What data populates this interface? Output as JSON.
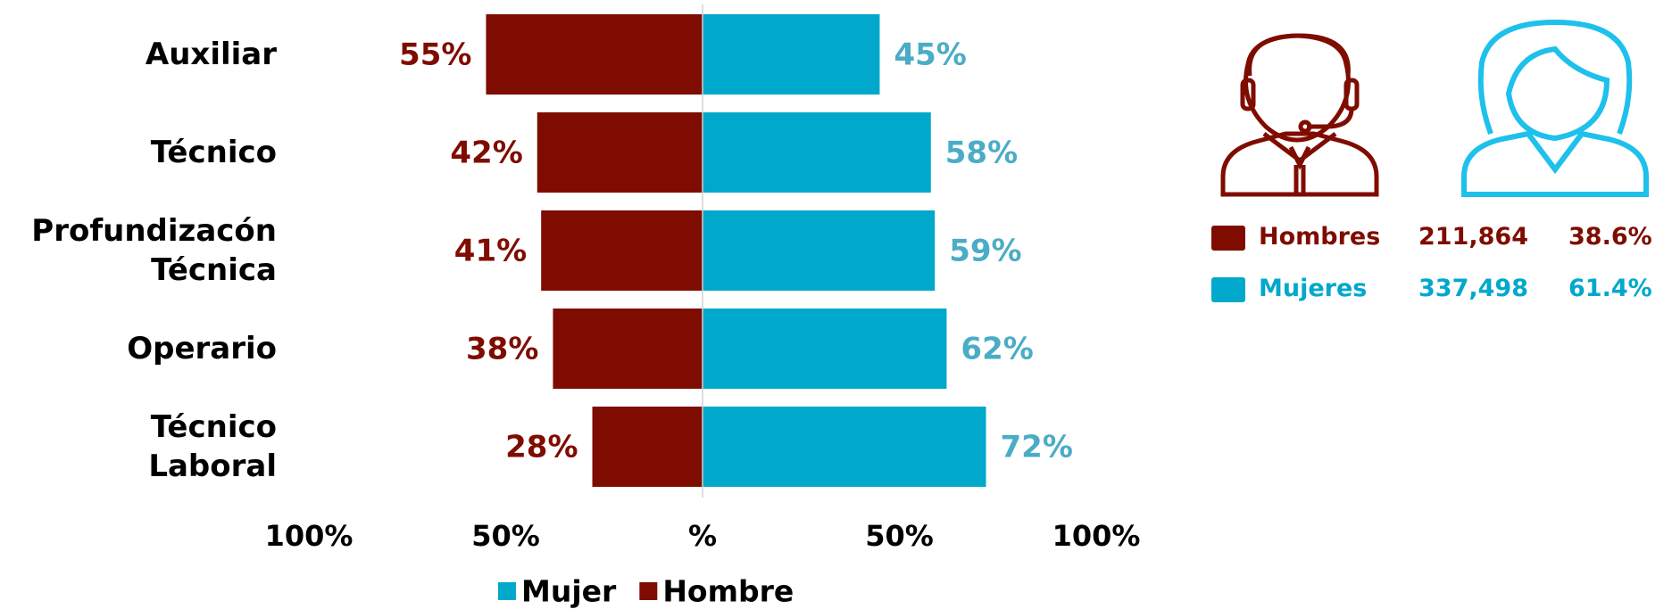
{
  "chart_data": {
    "type": "diverging-bar",
    "categories": [
      "Auxiliar",
      "Técnico",
      "Profundizacón\nTécnica",
      "Operario",
      "Técnico\nLaboral"
    ],
    "series": [
      {
        "name": "Mujer",
        "color": "#00a8cc",
        "label_color": "#4bacc6",
        "values": [
          45,
          58,
          59,
          62,
          72
        ],
        "value_labels": [
          "45%",
          "58%",
          "59%",
          "62%",
          "72%"
        ]
      },
      {
        "name": "Hombre",
        "color": "#7f0c00",
        "label_color": "#7f0c00",
        "values": [
          -55,
          -42,
          -41,
          -38,
          -28
        ],
        "value_labels": [
          "55%",
          "42%",
          "41%",
          "38%",
          "28%"
        ]
      }
    ],
    "xlim": [
      -100,
      100
    ],
    "xticks": [
      {
        "value": -100,
        "label": "100%"
      },
      {
        "value": -50,
        "label": "50%"
      },
      {
        "value": 0,
        "label": "%"
      },
      {
        "value": 50,
        "label": "50%"
      },
      {
        "value": 100,
        "label": "100%"
      }
    ],
    "legend": "bottom"
  },
  "summary": {
    "rows": [
      {
        "label": "Hombres",
        "count": "211,864",
        "share": "38.6%",
        "color": "#7f0c00"
      },
      {
        "label": "Mujeres",
        "count": "337,498",
        "share": "61.4%",
        "color": "#00a8cc"
      }
    ]
  }
}
